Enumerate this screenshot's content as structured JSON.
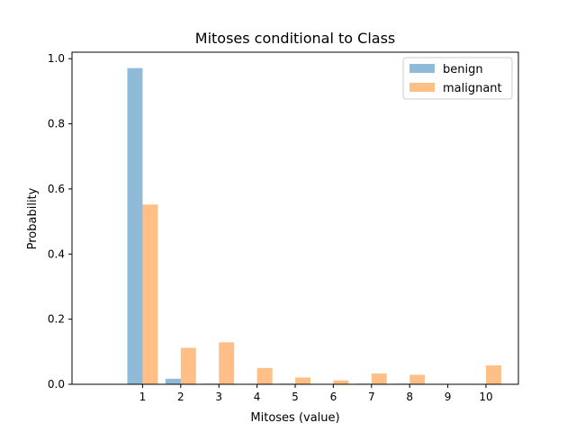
{
  "chart_data": {
    "type": "bar",
    "title": "Mitoses conditional to Class",
    "xlabel": "Mitoses (value)",
    "ylabel": "Probability",
    "categories": [
      "1",
      "2",
      "3",
      "4",
      "5",
      "6",
      "7",
      "8",
      "9",
      "10"
    ],
    "x": [
      1,
      2,
      3,
      4,
      5,
      6,
      7,
      8,
      9,
      10
    ],
    "xlim": [
      -0.85,
      10.85
    ],
    "ylim": [
      0,
      1.02
    ],
    "yticks": [
      "0.0",
      "0.2",
      "0.4",
      "0.6",
      "0.8",
      "1.0"
    ],
    "ytick_values": [
      0,
      0.2,
      0.4,
      0.6,
      0.8,
      1.0
    ],
    "grid": false,
    "legend_position": "top-right",
    "series": [
      {
        "name": "benign",
        "color": "#1f77b4",
        "values": [
          0.971,
          0.017,
          0.002,
          0.0,
          0.002,
          0.0,
          0.002,
          0.002,
          0.0,
          0.0
        ]
      },
      {
        "name": "malignant",
        "color": "#ff7f0e",
        "values": [
          0.552,
          0.112,
          0.129,
          0.05,
          0.021,
          0.012,
          0.033,
          0.029,
          0.0,
          0.058
        ]
      }
    ]
  }
}
